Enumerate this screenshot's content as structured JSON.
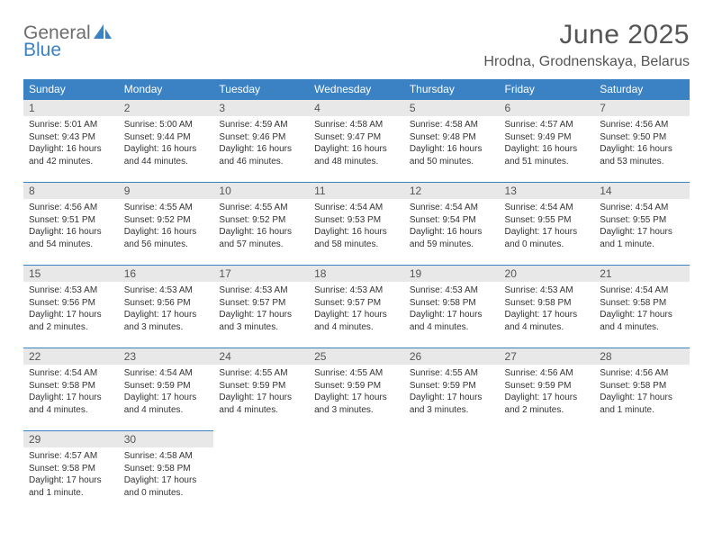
{
  "brand": {
    "top": "General",
    "bottom": "Blue",
    "top_color": "#6d6d6d",
    "bottom_color": "#3b82c4"
  },
  "title": "June 2025",
  "location": "Hrodna, Grodnenskaya, Belarus",
  "colors": {
    "header_bg": "#3b82c4",
    "header_text": "#ffffff",
    "daybar_bg": "#e8e8e8",
    "daybar_border": "#3b82c4",
    "text": "#333333",
    "title_text": "#555555"
  },
  "fonts": {
    "title_size": 30,
    "location_size": 16,
    "header_size": 12,
    "daynum_size": 12,
    "body_size": 10
  },
  "weekdays": [
    "Sunday",
    "Monday",
    "Tuesday",
    "Wednesday",
    "Thursday",
    "Friday",
    "Saturday"
  ],
  "grid": [
    [
      {
        "n": "1",
        "sr": "Sunrise: 5:01 AM",
        "ss": "Sunset: 9:43 PM",
        "dl": "Daylight: 16 hours and 42 minutes."
      },
      {
        "n": "2",
        "sr": "Sunrise: 5:00 AM",
        "ss": "Sunset: 9:44 PM",
        "dl": "Daylight: 16 hours and 44 minutes."
      },
      {
        "n": "3",
        "sr": "Sunrise: 4:59 AM",
        "ss": "Sunset: 9:46 PM",
        "dl": "Daylight: 16 hours and 46 minutes."
      },
      {
        "n": "4",
        "sr": "Sunrise: 4:58 AM",
        "ss": "Sunset: 9:47 PM",
        "dl": "Daylight: 16 hours and 48 minutes."
      },
      {
        "n": "5",
        "sr": "Sunrise: 4:58 AM",
        "ss": "Sunset: 9:48 PM",
        "dl": "Daylight: 16 hours and 50 minutes."
      },
      {
        "n": "6",
        "sr": "Sunrise: 4:57 AM",
        "ss": "Sunset: 9:49 PM",
        "dl": "Daylight: 16 hours and 51 minutes."
      },
      {
        "n": "7",
        "sr": "Sunrise: 4:56 AM",
        "ss": "Sunset: 9:50 PM",
        "dl": "Daylight: 16 hours and 53 minutes."
      }
    ],
    [
      {
        "n": "8",
        "sr": "Sunrise: 4:56 AM",
        "ss": "Sunset: 9:51 PM",
        "dl": "Daylight: 16 hours and 54 minutes."
      },
      {
        "n": "9",
        "sr": "Sunrise: 4:55 AM",
        "ss": "Sunset: 9:52 PM",
        "dl": "Daylight: 16 hours and 56 minutes."
      },
      {
        "n": "10",
        "sr": "Sunrise: 4:55 AM",
        "ss": "Sunset: 9:52 PM",
        "dl": "Daylight: 16 hours and 57 minutes."
      },
      {
        "n": "11",
        "sr": "Sunrise: 4:54 AM",
        "ss": "Sunset: 9:53 PM",
        "dl": "Daylight: 16 hours and 58 minutes."
      },
      {
        "n": "12",
        "sr": "Sunrise: 4:54 AM",
        "ss": "Sunset: 9:54 PM",
        "dl": "Daylight: 16 hours and 59 minutes."
      },
      {
        "n": "13",
        "sr": "Sunrise: 4:54 AM",
        "ss": "Sunset: 9:55 PM",
        "dl": "Daylight: 17 hours and 0 minutes."
      },
      {
        "n": "14",
        "sr": "Sunrise: 4:54 AM",
        "ss": "Sunset: 9:55 PM",
        "dl": "Daylight: 17 hours and 1 minute."
      }
    ],
    [
      {
        "n": "15",
        "sr": "Sunrise: 4:53 AM",
        "ss": "Sunset: 9:56 PM",
        "dl": "Daylight: 17 hours and 2 minutes."
      },
      {
        "n": "16",
        "sr": "Sunrise: 4:53 AM",
        "ss": "Sunset: 9:56 PM",
        "dl": "Daylight: 17 hours and 3 minutes."
      },
      {
        "n": "17",
        "sr": "Sunrise: 4:53 AM",
        "ss": "Sunset: 9:57 PM",
        "dl": "Daylight: 17 hours and 3 minutes."
      },
      {
        "n": "18",
        "sr": "Sunrise: 4:53 AM",
        "ss": "Sunset: 9:57 PM",
        "dl": "Daylight: 17 hours and 4 minutes."
      },
      {
        "n": "19",
        "sr": "Sunrise: 4:53 AM",
        "ss": "Sunset: 9:58 PM",
        "dl": "Daylight: 17 hours and 4 minutes."
      },
      {
        "n": "20",
        "sr": "Sunrise: 4:53 AM",
        "ss": "Sunset: 9:58 PM",
        "dl": "Daylight: 17 hours and 4 minutes."
      },
      {
        "n": "21",
        "sr": "Sunrise: 4:54 AM",
        "ss": "Sunset: 9:58 PM",
        "dl": "Daylight: 17 hours and 4 minutes."
      }
    ],
    [
      {
        "n": "22",
        "sr": "Sunrise: 4:54 AM",
        "ss": "Sunset: 9:58 PM",
        "dl": "Daylight: 17 hours and 4 minutes."
      },
      {
        "n": "23",
        "sr": "Sunrise: 4:54 AM",
        "ss": "Sunset: 9:59 PM",
        "dl": "Daylight: 17 hours and 4 minutes."
      },
      {
        "n": "24",
        "sr": "Sunrise: 4:55 AM",
        "ss": "Sunset: 9:59 PM",
        "dl": "Daylight: 17 hours and 4 minutes."
      },
      {
        "n": "25",
        "sr": "Sunrise: 4:55 AM",
        "ss": "Sunset: 9:59 PM",
        "dl": "Daylight: 17 hours and 3 minutes."
      },
      {
        "n": "26",
        "sr": "Sunrise: 4:55 AM",
        "ss": "Sunset: 9:59 PM",
        "dl": "Daylight: 17 hours and 3 minutes."
      },
      {
        "n": "27",
        "sr": "Sunrise: 4:56 AM",
        "ss": "Sunset: 9:59 PM",
        "dl": "Daylight: 17 hours and 2 minutes."
      },
      {
        "n": "28",
        "sr": "Sunrise: 4:56 AM",
        "ss": "Sunset: 9:58 PM",
        "dl": "Daylight: 17 hours and 1 minute."
      }
    ],
    [
      {
        "n": "29",
        "sr": "Sunrise: 4:57 AM",
        "ss": "Sunset: 9:58 PM",
        "dl": "Daylight: 17 hours and 1 minute."
      },
      {
        "n": "30",
        "sr": "Sunrise: 4:58 AM",
        "ss": "Sunset: 9:58 PM",
        "dl": "Daylight: 17 hours and 0 minutes."
      },
      null,
      null,
      null,
      null,
      null
    ]
  ]
}
